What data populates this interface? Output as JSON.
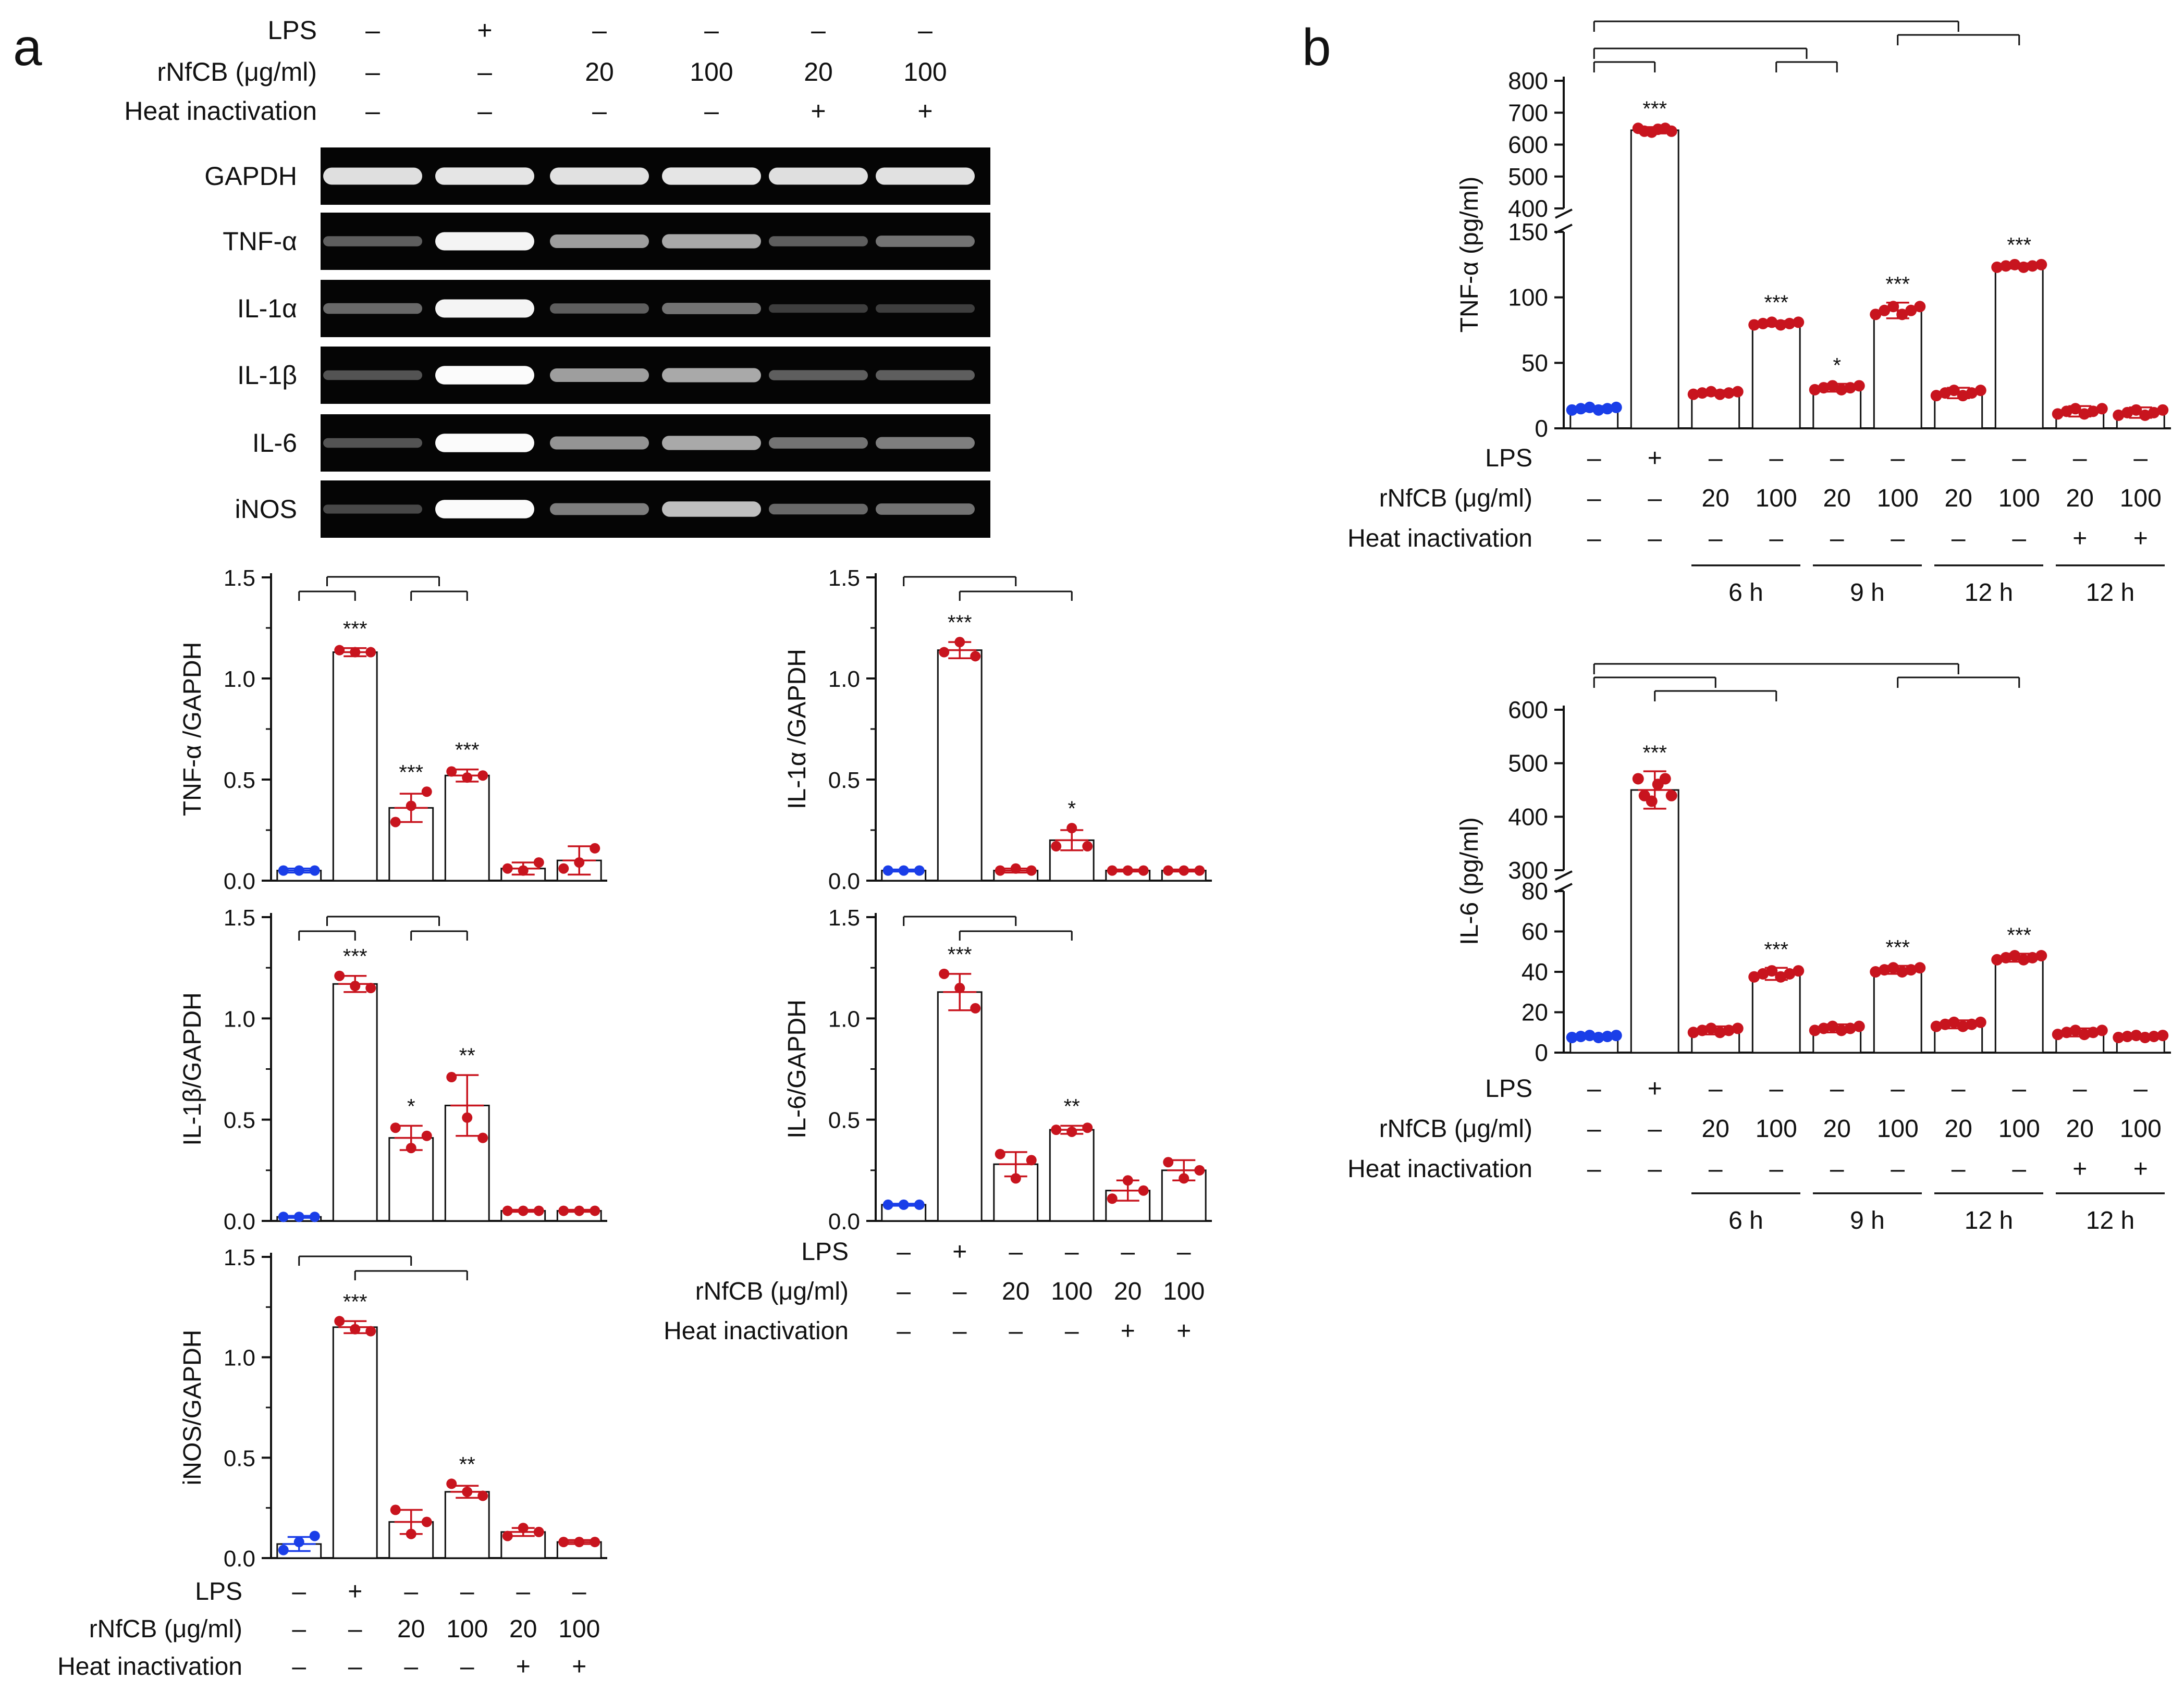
{
  "figure": {
    "panels": [
      {
        "letter": "a"
      },
      {
        "letter": "b"
      }
    ]
  },
  "colors": {
    "control": "#1a3ee8",
    "treated": "#c8141e",
    "axis": "#111111",
    "bar_fill": "#ffffff"
  },
  "gel": {
    "rows": [
      {
        "label": "GAPDH",
        "intensity": [
          0.85,
          0.88,
          0.86,
          0.88,
          0.85,
          0.86
        ]
      },
      {
        "label": "TNF-α",
        "intensity": [
          0.25,
          0.95,
          0.55,
          0.6,
          0.25,
          0.35
        ]
      },
      {
        "label": "IL-1α",
        "intensity": [
          0.3,
          0.95,
          0.25,
          0.35,
          0.1,
          0.1
        ]
      },
      {
        "label": "IL-1β",
        "intensity": [
          0.2,
          0.98,
          0.55,
          0.6,
          0.25,
          0.25
        ]
      },
      {
        "label": "IL-6",
        "intensity": [
          0.2,
          0.98,
          0.5,
          0.6,
          0.35,
          0.4
        ]
      },
      {
        "label": "iNOS",
        "intensity": [
          0.15,
          0.98,
          0.4,
          0.7,
          0.3,
          0.35
        ]
      }
    ],
    "header": {
      "rows": [
        {
          "label": "LPS",
          "values": [
            "–",
            "+",
            "–",
            "–",
            "–",
            "–"
          ]
        },
        {
          "label": "rNfCB (μg/ml)",
          "values": [
            "–",
            "–",
            "20",
            "100",
            "20",
            "100"
          ]
        },
        {
          "label": "Heat inactivation",
          "values": [
            "–",
            "–",
            "–",
            "–",
            "+",
            "+"
          ]
        }
      ]
    }
  },
  "conditions_a": {
    "rows": [
      {
        "label": "LPS",
        "values": [
          "–",
          "+",
          "–",
          "–",
          "–",
          "–"
        ]
      },
      {
        "label": "rNfCB (μg/ml)",
        "values": [
          "–",
          "–",
          "20",
          "100",
          "20",
          "100"
        ]
      },
      {
        "label": "Heat inactivation",
        "values": [
          "–",
          "–",
          "–",
          "–",
          "+",
          "+"
        ]
      }
    ]
  },
  "conditions_b": {
    "rows": [
      {
        "label": "LPS",
        "values": [
          "–",
          "+",
          "–",
          "–",
          "–",
          "–",
          "–",
          "–",
          "–",
          "–"
        ]
      },
      {
        "label": "rNfCB (μg/ml)",
        "values": [
          "–",
          "–",
          "20",
          "100",
          "20",
          "100",
          "20",
          "100",
          "20",
          "100"
        ]
      },
      {
        "label": "Heat inactivation",
        "values": [
          "–",
          "–",
          "–",
          "–",
          "–",
          "–",
          "–",
          "–",
          "+",
          "+"
        ]
      }
    ],
    "time_groups": [
      {
        "label": "6 h",
        "from": 2,
        "to": 3
      },
      {
        "label": "9 h",
        "from": 4,
        "to": 5
      },
      {
        "label": "12 h",
        "from": 6,
        "to": 7
      },
      {
        "label": "12 h",
        "from": 8,
        "to": 9
      }
    ]
  },
  "chart_data": [
    {
      "type": "bar",
      "panel": "a",
      "ylabel": "TNF-α /GAPDH",
      "ylim": [
        0,
        1.5
      ],
      "yticks": [
        "0.0",
        "0.5",
        "1.0",
        "1.5"
      ],
      "values": [
        0.05,
        1.13,
        0.36,
        0.52,
        0.06,
        0.1
      ],
      "errors": [
        0.01,
        0.02,
        0.07,
        0.03,
        0.03,
        0.07
      ],
      "points": [
        [
          0.05,
          0.05,
          0.05
        ],
        [
          1.14,
          1.13,
          1.13
        ],
        [
          0.29,
          0.37,
          0.44
        ],
        [
          0.54,
          0.51,
          0.52
        ],
        [
          0.06,
          0.05,
          0.09
        ],
        [
          0.06,
          0.09,
          0.16
        ]
      ],
      "significance": [
        "",
        "***",
        "***",
        "***",
        "",
        ""
      ],
      "brackets": [
        {
          "from": 0,
          "to": 1,
          "level": 1
        },
        {
          "from": 2,
          "to": 3,
          "level": 1
        },
        {
          "from": 0.5,
          "to": 2.5,
          "level": 2
        }
      ]
    },
    {
      "type": "bar",
      "panel": "a",
      "ylabel": "IL-1α /GAPDH",
      "ylim": [
        0,
        1.5
      ],
      "yticks": [
        "0.0",
        "0.5",
        "1.0",
        "1.5"
      ],
      "values": [
        0.05,
        1.14,
        0.05,
        0.2,
        0.05,
        0.05
      ],
      "errors": [
        0.005,
        0.04,
        0.01,
        0.05,
        0.005,
        0.005
      ],
      "points": [
        [
          0.05,
          0.05,
          0.05
        ],
        [
          1.13,
          1.18,
          1.11
        ],
        [
          0.05,
          0.06,
          0.05
        ],
        [
          0.17,
          0.26,
          0.17
        ],
        [
          0.05,
          0.05,
          0.05
        ],
        [
          0.05,
          0.05,
          0.05
        ]
      ],
      "significance": [
        "",
        "***",
        "",
        "*",
        "",
        ""
      ],
      "brackets": [
        {
          "from": 1,
          "to": 3,
          "level": 1
        },
        {
          "from": 0,
          "to": 2,
          "level": 2
        }
      ]
    },
    {
      "type": "bar",
      "panel": "a",
      "ylabel": "IL-1β/GAPDH",
      "ylim": [
        0,
        1.5
      ],
      "yticks": [
        "0.0",
        "0.5",
        "1.0",
        "1.5"
      ],
      "values": [
        0.02,
        1.17,
        0.41,
        0.57,
        0.05,
        0.05
      ],
      "errors": [
        0.005,
        0.04,
        0.06,
        0.15,
        0.005,
        0.005
      ],
      "points": [
        [
          0.02,
          0.02,
          0.02
        ],
        [
          1.21,
          1.16,
          1.15
        ],
        [
          0.46,
          0.36,
          0.42
        ],
        [
          0.71,
          0.51,
          0.41
        ],
        [
          0.05,
          0.05,
          0.05
        ],
        [
          0.05,
          0.05,
          0.05
        ]
      ],
      "significance": [
        "",
        "***",
        "*",
        "**",
        "",
        ""
      ],
      "brackets": [
        {
          "from": 0,
          "to": 1,
          "level": 1
        },
        {
          "from": 2,
          "to": 3,
          "level": 1
        },
        {
          "from": 0.5,
          "to": 2.5,
          "level": 2
        }
      ]
    },
    {
      "type": "bar",
      "panel": "a",
      "ylabel": "IL-6/GAPDH",
      "ylim": [
        0,
        1.5
      ],
      "yticks": [
        "0.0",
        "0.5",
        "1.0",
        "1.5"
      ],
      "values": [
        0.08,
        1.13,
        0.28,
        0.45,
        0.15,
        0.25
      ],
      "errors": [
        0.005,
        0.09,
        0.06,
        0.02,
        0.05,
        0.05
      ],
      "points": [
        [
          0.08,
          0.08,
          0.08
        ],
        [
          1.22,
          1.15,
          1.05
        ],
        [
          0.33,
          0.21,
          0.3
        ],
        [
          0.45,
          0.44,
          0.46
        ],
        [
          0.11,
          0.2,
          0.15
        ],
        [
          0.29,
          0.21,
          0.25
        ]
      ],
      "significance": [
        "",
        "***",
        "",
        "**",
        "",
        ""
      ],
      "brackets": [
        {
          "from": 1,
          "to": 3,
          "level": 1
        },
        {
          "from": 0,
          "to": 2,
          "level": 2
        }
      ]
    },
    {
      "type": "bar",
      "panel": "a",
      "ylabel": "iNOS/GAPDH",
      "ylim": [
        0,
        1.5
      ],
      "yticks": [
        "0.0",
        "0.5",
        "1.0",
        "1.5"
      ],
      "values": [
        0.07,
        1.15,
        0.18,
        0.33,
        0.13,
        0.08
      ],
      "errors": [
        0.035,
        0.03,
        0.06,
        0.03,
        0.02,
        0.01
      ],
      "points": [
        [
          0.04,
          0.08,
          0.11
        ],
        [
          1.18,
          1.14,
          1.13
        ],
        [
          0.24,
          0.12,
          0.18
        ],
        [
          0.37,
          0.33,
          0.31
        ],
        [
          0.11,
          0.15,
          0.13
        ],
        [
          0.08,
          0.08,
          0.08
        ]
      ],
      "significance": [
        "",
        "***",
        "",
        "**",
        "",
        ""
      ],
      "brackets": [
        {
          "from": 1,
          "to": 3,
          "level": 1
        },
        {
          "from": 0,
          "to": 2,
          "level": 2
        }
      ]
    },
    {
      "type": "bar",
      "panel": "b",
      "ylabel": "TNF-α (pg/ml)",
      "broken_axis": true,
      "lower_ylim": [
        0,
        150
      ],
      "lower_yticks": [
        "0",
        "50",
        "100",
        "150"
      ],
      "upper_ylim": [
        400,
        800
      ],
      "upper_yticks": [
        "400",
        "500",
        "600",
        "700",
        "800"
      ],
      "values": [
        15,
        645,
        27,
        80,
        31,
        90,
        27,
        124,
        13,
        12
      ],
      "errors": [
        2,
        10,
        2,
        2,
        3,
        6,
        4,
        2,
        4,
        4
      ],
      "significance": [
        "",
        "***",
        "",
        "***",
        "*",
        "***",
        "",
        "***",
        "",
        ""
      ],
      "brackets": [
        {
          "from": 0,
          "to": 1,
          "level": 1
        },
        {
          "from": 3,
          "to": 4,
          "level": 1
        },
        {
          "from": 0,
          "to": 3.5,
          "level": 2
        },
        {
          "from": 5,
          "to": 7,
          "level": 3
        },
        {
          "from": 0,
          "to": 6,
          "level": 4
        }
      ]
    },
    {
      "type": "bar",
      "panel": "b",
      "ylabel": "IL-6 (pg/ml)",
      "broken_axis": true,
      "lower_ylim": [
        0,
        80
      ],
      "lower_yticks": [
        "0",
        "20",
        "40",
        "60",
        "80"
      ],
      "upper_ylim": [
        300,
        600
      ],
      "upper_yticks": [
        "300",
        "400",
        "500",
        "600"
      ],
      "values": [
        8,
        450,
        11,
        39,
        12,
        41,
        14,
        47,
        10,
        8
      ],
      "errors": [
        1,
        35,
        2,
        3,
        2,
        2,
        2,
        2,
        2,
        1
      ],
      "significance": [
        "",
        "***",
        "",
        "***",
        "",
        "***",
        "",
        "***",
        "",
        ""
      ],
      "brackets": [
        {
          "from": 1,
          "to": 3,
          "level": 1
        },
        {
          "from": 0,
          "to": 2,
          "level": 2
        },
        {
          "from": 5,
          "to": 7,
          "level": 2
        },
        {
          "from": 0,
          "to": 6,
          "level": 3
        }
      ]
    }
  ]
}
